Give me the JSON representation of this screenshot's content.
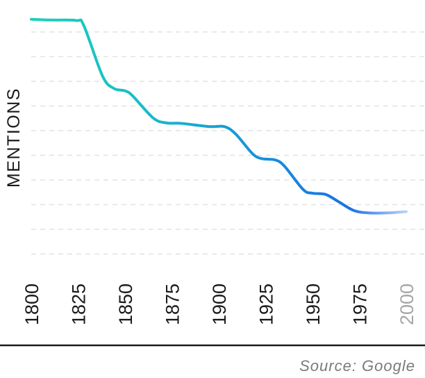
{
  "chart_data": {
    "type": "line",
    "title": "",
    "xlabel": "",
    "ylabel": "MENTIONS",
    "x_ticks": [
      "1800",
      "1825",
      "1850",
      "1875",
      "1900",
      "1925",
      "1950",
      "1975",
      "2000"
    ],
    "xlim": [
      1800,
      2000
    ],
    "ylim": [
      0,
      100
    ],
    "grid": true,
    "grid_style": "dashed-horizontal",
    "series": [
      {
        "color_start": "#1ecfb8",
        "color_end": "#1a6fe6",
        "points": [
          [
            1800,
            95
          ],
          [
            1810,
            94.7
          ],
          [
            1824,
            94.5
          ],
          [
            1828,
            92.5
          ],
          [
            1838,
            72
          ],
          [
            1844,
            67
          ],
          [
            1850,
            66
          ],
          [
            1854,
            64
          ],
          [
            1865,
            55
          ],
          [
            1872,
            53
          ],
          [
            1880,
            52.8
          ],
          [
            1895,
            51.5
          ],
          [
            1903,
            51.5
          ],
          [
            1909,
            48.5
          ],
          [
            1918,
            40.5
          ],
          [
            1923,
            38.5
          ],
          [
            1930,
            38
          ],
          [
            1935,
            35.5
          ],
          [
            1945,
            26
          ],
          [
            1950,
            24.5
          ],
          [
            1957,
            24
          ],
          [
            1964,
            21
          ],
          [
            1972,
            17.5
          ],
          [
            1980,
            16.5
          ],
          [
            1990,
            16.5
          ],
          [
            2000,
            17
          ]
        ]
      }
    ]
  },
  "source": "Source: Google"
}
